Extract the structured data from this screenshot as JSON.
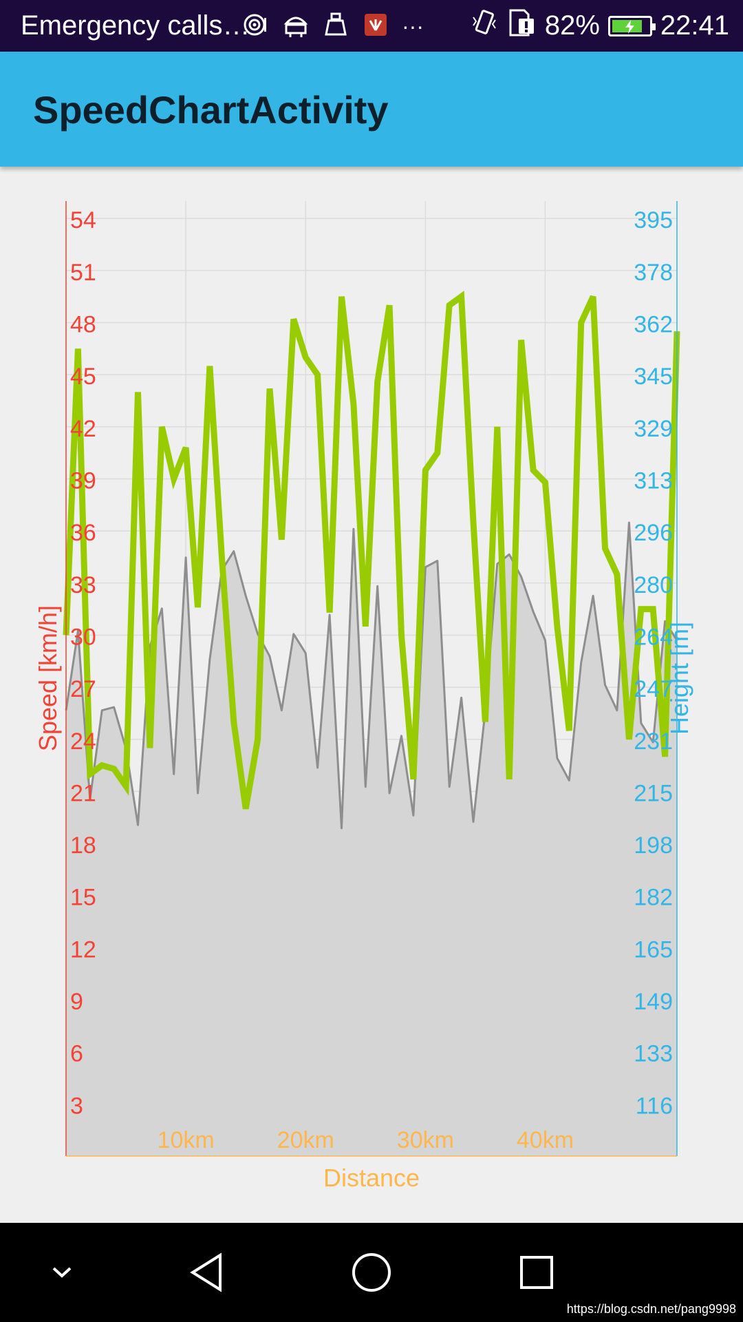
{
  "status_bar": {
    "notification_text": "Emergency calls…",
    "more_indicator": "···",
    "battery_percent": "82%",
    "battery_level": 0.82,
    "time": "22:41",
    "icons": [
      "hotspot-icon",
      "android-icon",
      "cleaner-icon",
      "huawei-icon",
      "more-icon",
      "vibrate-icon",
      "sim-alert-icon",
      "battery-charging-icon"
    ]
  },
  "app_bar": {
    "title": "SpeedChartActivity"
  },
  "nav_bar": {
    "buttons": [
      "chevron-down-icon",
      "back-icon",
      "home-icon",
      "recents-icon"
    ],
    "watermark": "https://blog.csdn.net/pang9998"
  },
  "colors": {
    "speed_axis": "#f44336",
    "height_axis": "#33b5e5",
    "distance_axis": "#ffb74d",
    "speed_line": "#99cc00",
    "height_line": "#8e8e8e",
    "height_fill": "#d5d5d5",
    "grid": "#dcdcdc"
  },
  "chart_data": {
    "type": "line",
    "xlabel": "Distance",
    "ylabel_left": "Speed [km/h]",
    "ylabel_right": "Height [m]",
    "x_ticks": [
      "10km",
      "20km",
      "30km",
      "40km"
    ],
    "x_tick_values": [
      10,
      20,
      30,
      40
    ],
    "xlim": [
      0,
      51
    ],
    "ylim_left": [
      0,
      55
    ],
    "ylim_right": [
      100,
      400
    ],
    "y_ticks_left": [
      "54",
      "51",
      "48",
      "45",
      "42",
      "39",
      "36",
      "33",
      "30",
      "27",
      "24",
      "21",
      "18",
      "15",
      "12",
      "9",
      "6",
      "3"
    ],
    "y_ticks_right": [
      "395",
      "378",
      "362",
      "345",
      "329",
      "313",
      "296",
      "280",
      "264",
      "247",
      "231",
      "215",
      "198",
      "182",
      "165",
      "149",
      "133",
      "116"
    ],
    "grid": true,
    "x": [
      0,
      1,
      2,
      3,
      4,
      5,
      6,
      7,
      8,
      9,
      10,
      11,
      12,
      13,
      14,
      15,
      16,
      17,
      18,
      19,
      20,
      21,
      22,
      23,
      24,
      25,
      26,
      27,
      28,
      29,
      30,
      31,
      32,
      33,
      34,
      35,
      36,
      37,
      38,
      39,
      40,
      41,
      42,
      43,
      44,
      45,
      46,
      47,
      48,
      49,
      50,
      51
    ],
    "series": [
      {
        "name": "Speed [km/h]",
        "axis": "left",
        "values": [
          30.0,
          46.5,
          22.0,
          22.5,
          22.3,
          21.3,
          44.0,
          23.5,
          42.0,
          39.0,
          40.8,
          31.6,
          45.5,
          34.5,
          25.0,
          20.0,
          24.0,
          44.2,
          35.5,
          48.2,
          46.0,
          45.0,
          31.3,
          49.5,
          43.3,
          30.5,
          44.6,
          49.0,
          30.0,
          21.7,
          39.5,
          40.5,
          49.0,
          49.5,
          36.5,
          25.0,
          42.0,
          21.7,
          47.0,
          39.5,
          38.8,
          30.5,
          24.5,
          48.0,
          49.5,
          35.0,
          33.5,
          24.0,
          31.5,
          31.5,
          23.0,
          47.5
        ]
      },
      {
        "name": "Height [m]",
        "axis": "right",
        "values": [
          240,
          265,
          212,
          240,
          241,
          228,
          204,
          260,
          272,
          220,
          288,
          214,
          256,
          284,
          290,
          276,
          264,
          257,
          240,
          264,
          258,
          222,
          270,
          203,
          297,
          216,
          279,
          214,
          232,
          207,
          285,
          287,
          216,
          244,
          205,
          240,
          286,
          289,
          282,
          271,
          262,
          225,
          218,
          255,
          276,
          248,
          240,
          299,
          236,
          230,
          268,
          262
        ]
      }
    ]
  }
}
